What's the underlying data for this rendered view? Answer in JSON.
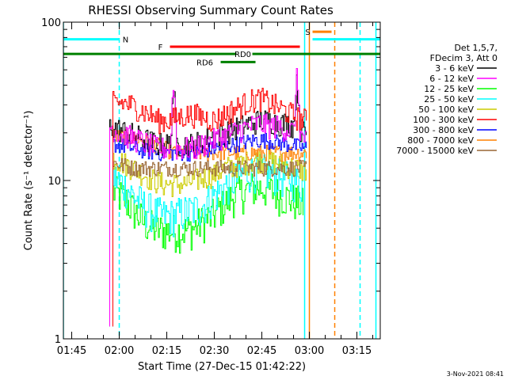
{
  "chart_data": {
    "type": "line",
    "title": "RHESSI Observing Summary Count Rates",
    "xlabel": "Start Time (27-Dec-15 01:42:22)",
    "ylabel": "Count Rate (s⁻¹ detector⁻¹)",
    "yscale": "log",
    "ylim": [
      1,
      100
    ],
    "xlim": [
      "01:42:22",
      "03:22:22"
    ],
    "x_ticks": [
      "01:45",
      "02:00",
      "02:15",
      "02:30",
      "02:45",
      "03:00",
      "03:15"
    ],
    "y_ticks": [
      "1",
      "10",
      "100"
    ],
    "legend_position": "right",
    "legend_header": [
      "Det 1,5,7,",
      "FDecim 3, Att 0"
    ],
    "footer_date": "3-Nov-2021 08:41",
    "series": [
      {
        "name": "3 - 6 keV",
        "color": "#000000",
        "start": "01:57",
        "end": "02:59",
        "level": [
          22,
          21,
          20,
          19,
          18,
          17,
          17,
          17,
          17,
          17,
          18,
          19,
          20,
          21,
          22,
          23,
          24,
          24,
          23,
          23,
          22,
          20
        ],
        "spikes": [
          [
            "02:17",
            38
          ],
          [
            "02:56",
            42
          ]
        ]
      },
      {
        "name": "6 - 12 keV",
        "color": "#ff00ff",
        "start": "01:57",
        "end": "02:59",
        "level": [
          22,
          20,
          19,
          18,
          17,
          16,
          16,
          16,
          16,
          16,
          17,
          18,
          19,
          20,
          21,
          22,
          23,
          22,
          22,
          21,
          20,
          18
        ],
        "spikes": [
          [
            "02:17",
            40
          ],
          [
            "02:56",
            46
          ]
        ]
      },
      {
        "name": "12 - 25 keV",
        "color": "#00ff00",
        "start": "01:58",
        "end": "02:58",
        "level": [
          8.5,
          7.8,
          6.5,
          5.5,
          5.0,
          4.8,
          4.8,
          4.8,
          5.0,
          5.5,
          6.0,
          7.0,
          8.0,
          8.5,
          9.0,
          9.0,
          8.5,
          8.0,
          7.5,
          7.0
        ],
        "spikes": []
      },
      {
        "name": "25 - 50 keV",
        "color": "#00ffff",
        "start": "01:58",
        "end": "02:58",
        "level": [
          10.5,
          9.5,
          8.0,
          7.0,
          6.3,
          6.0,
          6.0,
          6.3,
          6.5,
          7.0,
          8.0,
          9.0,
          10.0,
          11.0,
          11.5,
          11.5,
          11.0,
          10.5,
          10.0,
          9.5
        ],
        "spikes": []
      },
      {
        "name": "50 - 100 keV",
        "color": "#cccc00",
        "start": "01:58",
        "end": "02:59",
        "level": [
          14,
          13,
          12,
          11,
          10,
          9.5,
          9.5,
          9.5,
          10,
          10.5,
          11,
          12,
          12.5,
          13,
          13.5,
          13.5,
          13,
          12.5,
          12,
          11.5
        ],
        "spikes": []
      },
      {
        "name": "100 - 300 keV",
        "color": "#ff0000",
        "start": "01:58",
        "end": "02:59",
        "level": [
          31,
          31,
          30,
          28,
          26,
          24,
          24,
          25,
          26,
          26,
          25,
          24,
          26,
          28,
          30,
          32,
          33,
          31,
          29,
          27,
          25,
          24
        ],
        "spikes": []
      },
      {
        "name": "300 - 800 keV",
        "color": "#0000ff",
        "start": "01:58",
        "end": "02:59",
        "level": [
          17,
          16.5,
          16,
          15.5,
          15,
          15,
          15,
          15,
          15,
          15.5,
          16,
          16.5,
          17,
          17.5,
          18,
          18,
          17.5,
          17,
          16.5,
          16
        ],
        "spikes": []
      },
      {
        "name": "800 - 7000 keV",
        "color": "#ff8000",
        "start": "01:58",
        "end": "02:59",
        "level": [
          19,
          19,
          18.5,
          18,
          17,
          16,
          15,
          15,
          15,
          15,
          15,
          15,
          15,
          15,
          15,
          15,
          15,
          15,
          15,
          15
        ],
        "spikes": []
      },
      {
        "name": "7000 - 15000 keV",
        "color": "#996633",
        "start": "01:58",
        "end": "02:59",
        "level": [
          13,
          12.5,
          12,
          12,
          12,
          12,
          12,
          12,
          12,
          12,
          12,
          12,
          12,
          12,
          12,
          12,
          12,
          12,
          12,
          12
        ],
        "spikes": []
      }
    ],
    "annotations": [
      {
        "label": "N",
        "color": "#00ffff",
        "y": 78,
        "x_start": "01:42:22",
        "x_end": "02:00",
        "label_x": "02:02"
      },
      {
        "label": "N",
        "color": "#00ffff",
        "y": 78,
        "x_start": "03:01",
        "x_end": "03:22:22",
        "label_x": ""
      },
      {
        "label": "F",
        "color": "#ff0000",
        "y": 70,
        "x_start": "02:16",
        "x_end": "02:57",
        "label_x": "02:13"
      },
      {
        "label": "S",
        "color": "#ff8000",
        "y": 87,
        "x_start": "03:01",
        "x_end": "03:07",
        "label_x": "02:59:30"
      },
      {
        "label": "RD0",
        "color": "#008000",
        "y": 63,
        "x_start": "01:42:22",
        "x_end": "03:22:22",
        "label_x": "02:39",
        "gap": [
          "02:37",
          "02:42"
        ]
      },
      {
        "label": "RD6",
        "color": "#008000",
        "y": 56,
        "x_start": "02:32",
        "x_end": "02:43",
        "label_x": "02:27"
      }
    ],
    "vertical_markers": [
      {
        "x": "01:42:22",
        "color": "#00ffff",
        "style": "solid"
      },
      {
        "x": "02:00",
        "color": "#00ffff",
        "style": "dashed"
      },
      {
        "x": "02:58:30",
        "color": "#00ffff",
        "style": "solid"
      },
      {
        "x": "03:00",
        "color": "#ff8000",
        "style": "solid"
      },
      {
        "x": "03:08",
        "color": "#ff8000",
        "style": "dashed"
      },
      {
        "x": "03:16",
        "color": "#00ffff",
        "style": "dashed"
      },
      {
        "x": "03:21",
        "color": "#00ffff",
        "style": "solid"
      }
    ]
  }
}
